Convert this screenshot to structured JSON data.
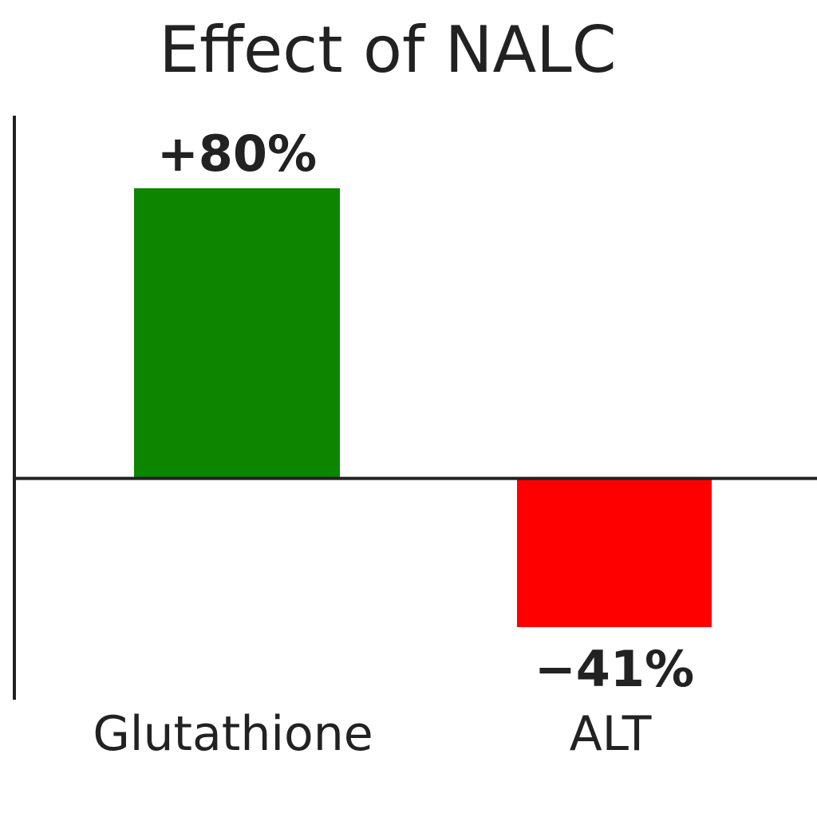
{
  "chart_data": {
    "type": "bar",
    "title": "Effect of NALC",
    "categories": [
      "Glutathione",
      "ALT"
    ],
    "values": [
      80,
      -41
    ],
    "value_labels": [
      "+80%",
      "−41%"
    ],
    "colors": [
      "#0c8500",
      "#ff0000"
    ],
    "ylim": [
      -61,
      100
    ],
    "grid": false,
    "legend": "none",
    "axis_color": "#222222"
  }
}
